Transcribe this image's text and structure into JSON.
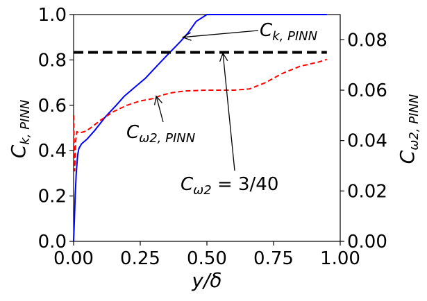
{
  "chart_data": {
    "type": "line",
    "xlabel": "y/δ",
    "ylabel_left": "C_{k,PINN}",
    "ylabel_right": "C_{ω2,PINN}",
    "xlim": [
      0.0,
      1.0
    ],
    "ylim_left": [
      0.0,
      1.0
    ],
    "ylim_right": [
      0.0,
      0.09
    ],
    "x_ticks": [
      "0.00",
      "0.25",
      "0.50",
      "0.75",
      "1.00"
    ],
    "y_ticks_left": [
      "0.0",
      "0.2",
      "0.4",
      "0.6",
      "0.8",
      "1.0"
    ],
    "y_ticks_right": [
      "0.00",
      "0.02",
      "0.04",
      "0.06",
      "0.08"
    ],
    "series": [
      {
        "name": "C_k,PINN",
        "axis": "left",
        "color": "#0000ff",
        "style": "solid",
        "x": [
          0.0,
          0.003,
          0.006,
          0.01,
          0.015,
          0.02,
          0.03,
          0.05,
          0.08,
          0.12,
          0.16,
          0.19,
          0.23,
          0.27,
          0.31,
          0.35,
          0.4,
          0.43,
          0.46,
          0.5,
          0.55,
          0.6,
          0.7,
          0.8,
          0.95
        ],
        "y": [
          0.0,
          0.1,
          0.2,
          0.3,
          0.38,
          0.41,
          0.43,
          0.45,
          0.49,
          0.55,
          0.6,
          0.64,
          0.68,
          0.72,
          0.77,
          0.82,
          0.88,
          0.92,
          0.97,
          1.0,
          1.0,
          1.0,
          1.0,
          1.0,
          1.0
        ]
      },
      {
        "name": "C_ω2,PINN",
        "axis": "right",
        "color": "#ff0000",
        "style": "dashed",
        "x": [
          0.0,
          0.004,
          0.008,
          0.012,
          0.02,
          0.04,
          0.06,
          0.1,
          0.15,
          0.2,
          0.25,
          0.3,
          0.33,
          0.37,
          0.42,
          0.5,
          0.6,
          0.66,
          0.72,
          0.78,
          0.85,
          0.92,
          0.95
        ],
        "y": [
          0.05,
          0.028,
          0.04,
          0.0435,
          0.043,
          0.0435,
          0.0447,
          0.048,
          0.0515,
          0.054,
          0.0557,
          0.0567,
          0.058,
          0.059,
          0.0597,
          0.06,
          0.06,
          0.0605,
          0.063,
          0.0665,
          0.0695,
          0.0712,
          0.0722
        ]
      },
      {
        "name": "C_ω2 = 3/40",
        "axis": "right",
        "color": "#000000",
        "style": "dashed-thick",
        "x": [
          0.0,
          0.95
        ],
        "y": [
          0.075,
          0.075
        ]
      }
    ],
    "annotations": [
      {
        "text": "C_k,PINN",
        "label_x": 0.7,
        "label_y_left": 0.92,
        "arrow_to_x": 0.41,
        "arrow_to_y_left": 0.9
      },
      {
        "text": "C_ω2,PINN",
        "label_x": 0.21,
        "label_y_left": 0.46,
        "arrow_to_x": 0.31,
        "arrow_to_y_left": 0.64
      },
      {
        "text": "C_ω2 = 3/40",
        "label_x": 0.4,
        "label_y_left": 0.24,
        "arrow_to_x": 0.56,
        "arrow_to_y_left": 0.83
      }
    ],
    "grid": false,
    "legend": "none"
  },
  "labels": {
    "xlabel_main": "y/δ",
    "ylabel_left_main": "C",
    "ylabel_left_sub": "k, PINN",
    "ylabel_right_main": "C",
    "ylabel_right_sub": "ω2, PINN",
    "annot_ck_main": "C",
    "annot_ck_sub": "k, PINN",
    "annot_cw_main": "C",
    "annot_cw_sub": "ω2, PINN",
    "annot_const_main": "C",
    "annot_const_sub": "ω2",
    "annot_const_rest": " = 3/40"
  }
}
